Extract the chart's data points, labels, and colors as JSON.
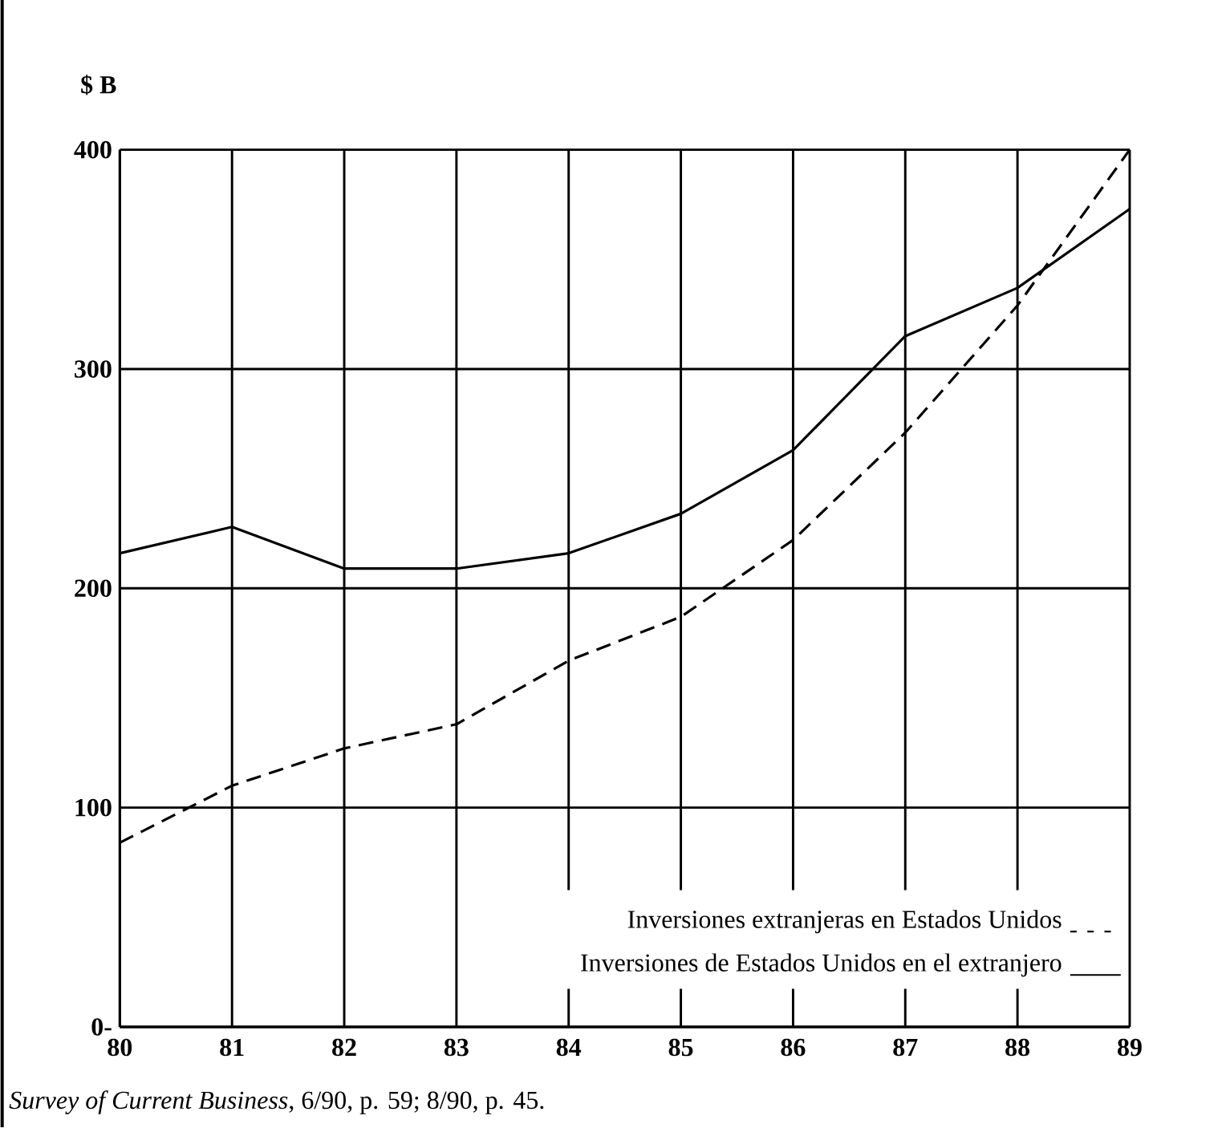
{
  "chart_data": {
    "type": "line",
    "ylabel": "$ B",
    "categories": [
      "80",
      "81",
      "82",
      "83",
      "84",
      "85",
      "86",
      "87",
      "88",
      "89"
    ],
    "ylim": [
      0,
      400
    ],
    "yticks": [
      {
        "value": 0,
        "label": "0-"
      },
      100,
      200,
      300,
      400
    ],
    "grid": true,
    "legend": "bottom right",
    "annotations": [
      "*Survey of Current Business*, 6/90, p. 59; 8/90, p. 45."
    ],
    "series": [
      {
        "name": "Inversiones extranjeras en Estados Unidos",
        "color": "#000000",
        "line_style": "dashed",
        "values": [
          84,
          110,
          127,
          138,
          167,
          187,
          222,
          271,
          329,
          400
        ]
      },
      {
        "name": "Inversiones de Estados Unidos en el extranjero",
        "color": "#000000",
        "line_style": "solid",
        "values": [
          216,
          228,
          209,
          209,
          216,
          234,
          263,
          315,
          337,
          373
        ]
      }
    ]
  }
}
